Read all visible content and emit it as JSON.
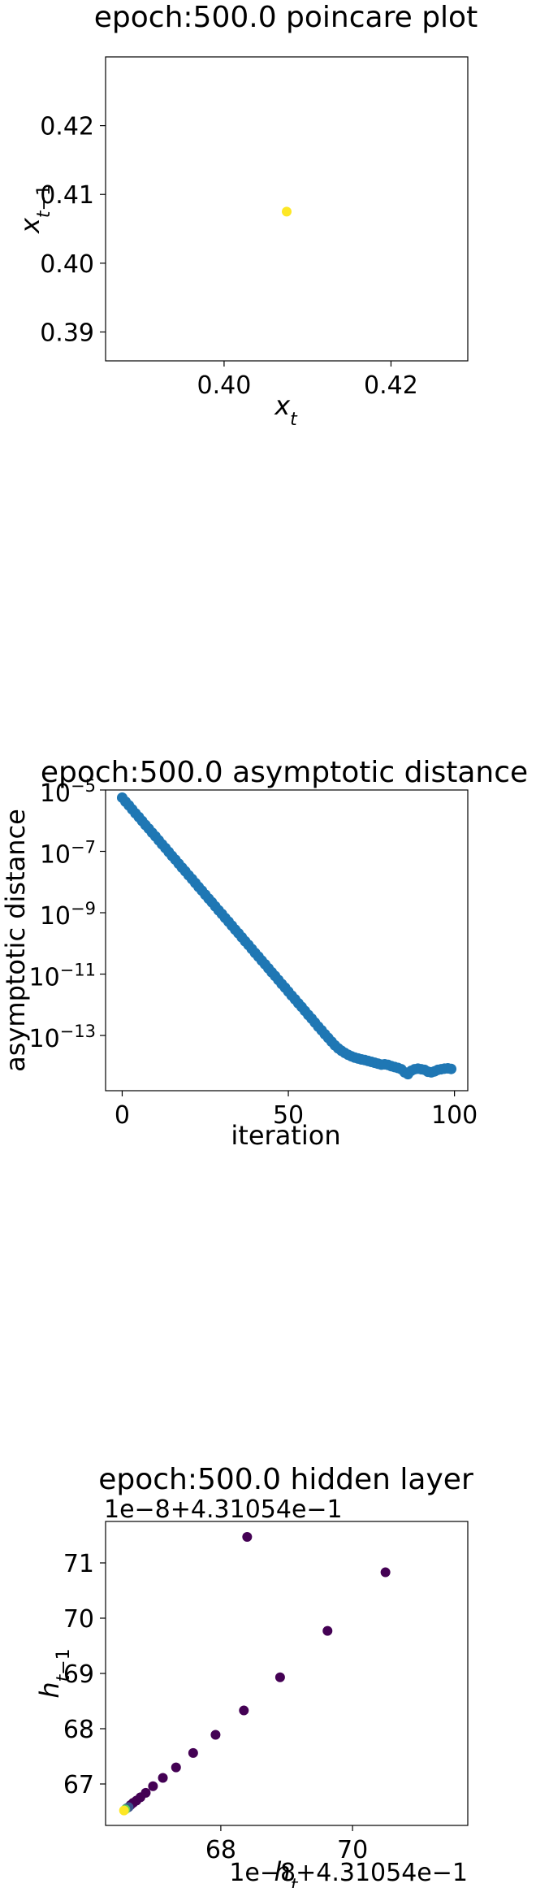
{
  "chart_data": [
    {
      "type": "scatter",
      "title": "epoch:500.0 poincare plot",
      "xlabel": "x_t",
      "ylabel": "x_{t−1}",
      "xlim": [
        0.3858,
        0.4292
      ],
      "ylim": [
        0.3858,
        0.43
      ],
      "xticks": [
        0.4,
        0.42
      ],
      "xtick_labels": [
        "0.40",
        "0.42"
      ],
      "yticks": [
        0.39,
        0.4,
        0.41,
        0.42
      ],
      "ytick_labels": [
        "0.39",
        "0.40",
        "0.41",
        "0.42"
      ],
      "grid": false,
      "points": [
        {
          "x": 0.4075,
          "y": 0.4075,
          "color": "#fde725"
        }
      ]
    },
    {
      "type": "scatter",
      "title": "epoch:500.0 asymptotic distance",
      "xlabel": "iteration",
      "ylabel": "asymptotic distance",
      "yscale": "log",
      "xlim": [
        -5,
        104
      ],
      "ylim_log10": [
        -14.8,
        -5.0
      ],
      "xticks": [
        0,
        50,
        100
      ],
      "xtick_labels": [
        "0",
        "50",
        "100"
      ],
      "yticks_log10": [
        -5,
        -7,
        -9,
        -11,
        -13
      ],
      "ytick_labels": [
        "10^-5",
        "10^-7",
        "10^-9",
        "10^-11",
        "10^-13"
      ],
      "grid": false,
      "color": "#1f77b4",
      "points_log10": [
        [
          0,
          -5.25
        ],
        [
          1,
          -5.38
        ],
        [
          2,
          -5.5
        ],
        [
          3,
          -5.63
        ],
        [
          4,
          -5.76
        ],
        [
          5,
          -5.88
        ],
        [
          6,
          -6.01
        ],
        [
          7,
          -6.14
        ],
        [
          8,
          -6.26
        ],
        [
          9,
          -6.39
        ],
        [
          10,
          -6.51
        ],
        [
          11,
          -6.64
        ],
        [
          12,
          -6.77
        ],
        [
          13,
          -6.89
        ],
        [
          14,
          -7.02
        ],
        [
          15,
          -7.15
        ],
        [
          16,
          -7.27
        ],
        [
          17,
          -7.4
        ],
        [
          18,
          -7.53
        ],
        [
          19,
          -7.65
        ],
        [
          20,
          -7.78
        ],
        [
          21,
          -7.9
        ],
        [
          22,
          -8.03
        ],
        [
          23,
          -8.16
        ],
        [
          24,
          -8.28
        ],
        [
          25,
          -8.41
        ],
        [
          26,
          -8.54
        ],
        [
          27,
          -8.66
        ],
        [
          28,
          -8.79
        ],
        [
          29,
          -8.92
        ],
        [
          30,
          -9.04
        ],
        [
          31,
          -9.17
        ],
        [
          32,
          -9.29
        ],
        [
          33,
          -9.42
        ],
        [
          34,
          -9.55
        ],
        [
          35,
          -9.67
        ],
        [
          36,
          -9.8
        ],
        [
          37,
          -9.93
        ],
        [
          38,
          -10.05
        ],
        [
          39,
          -10.18
        ],
        [
          40,
          -10.31
        ],
        [
          41,
          -10.43
        ],
        [
          42,
          -10.56
        ],
        [
          43,
          -10.68
        ],
        [
          44,
          -10.81
        ],
        [
          45,
          -10.94
        ],
        [
          46,
          -11.06
        ],
        [
          47,
          -11.19
        ],
        [
          48,
          -11.32
        ],
        [
          49,
          -11.44
        ],
        [
          50,
          -11.57
        ],
        [
          51,
          -11.7
        ],
        [
          52,
          -11.82
        ],
        [
          53,
          -11.95
        ],
        [
          54,
          -12.07
        ],
        [
          55,
          -12.2
        ],
        [
          56,
          -12.33
        ],
        [
          57,
          -12.45
        ],
        [
          58,
          -12.58
        ],
        [
          59,
          -12.71
        ],
        [
          60,
          -12.83
        ],
        [
          61,
          -12.96
        ],
        [
          62,
          -13.08
        ],
        [
          63,
          -13.2
        ],
        [
          64,
          -13.32
        ],
        [
          65,
          -13.42
        ],
        [
          66,
          -13.5
        ],
        [
          67,
          -13.57
        ],
        [
          68,
          -13.63
        ],
        [
          69,
          -13.68
        ],
        [
          70,
          -13.72
        ],
        [
          71,
          -13.75
        ],
        [
          72,
          -13.78
        ],
        [
          73,
          -13.8
        ],
        [
          74,
          -13.83
        ],
        [
          75,
          -13.86
        ],
        [
          76,
          -13.89
        ],
        [
          77,
          -13.92
        ],
        [
          78,
          -13.95
        ],
        [
          79,
          -13.94
        ],
        [
          80,
          -13.96
        ],
        [
          81,
          -14.0
        ],
        [
          82,
          -14.03
        ],
        [
          83,
          -14.06
        ],
        [
          84,
          -14.1
        ],
        [
          85,
          -14.2
        ],
        [
          86,
          -14.26
        ],
        [
          87,
          -14.15
        ],
        [
          88,
          -14.1
        ],
        [
          89,
          -14.08
        ],
        [
          90,
          -14.1
        ],
        [
          91,
          -14.12
        ],
        [
          92,
          -14.18
        ],
        [
          93,
          -14.2
        ],
        [
          94,
          -14.17
        ],
        [
          95,
          -14.12
        ],
        [
          96,
          -14.1
        ],
        [
          97,
          -14.08
        ],
        [
          98,
          -14.07
        ],
        [
          99,
          -14.09
        ]
      ]
    },
    {
      "type": "scatter",
      "title": "epoch:500.0 hidden layer",
      "xlabel": "h_t",
      "ylabel": "h_{t−1}",
      "x_offset_text": "1e−8+4.31054e−1",
      "y_offset_text": "1e−8+4.31054e−1",
      "xlim": [
        66.25,
        71.75
      ],
      "ylim": [
        66.25,
        71.75
      ],
      "xticks": [
        68,
        70
      ],
      "xtick_labels": [
        "68",
        "70"
      ],
      "yticks": [
        67,
        68,
        69,
        70,
        71
      ],
      "ytick_labels": [
        "67",
        "68",
        "69",
        "70",
        "71"
      ],
      "grid": false,
      "points": [
        {
          "x": 66.53,
          "y": 66.52,
          "color": "#fde725"
        },
        {
          "x": 66.55,
          "y": 66.54,
          "color": "#5ec962"
        },
        {
          "x": 66.57,
          "y": 66.56,
          "color": "#3b528b"
        },
        {
          "x": 66.6,
          "y": 66.58,
          "color": "#3b528b"
        },
        {
          "x": 66.63,
          "y": 66.62,
          "color": "#440154"
        },
        {
          "x": 66.67,
          "y": 66.66,
          "color": "#440154"
        },
        {
          "x": 66.72,
          "y": 66.7,
          "color": "#440154"
        },
        {
          "x": 66.78,
          "y": 66.76,
          "color": "#440154"
        },
        {
          "x": 66.86,
          "y": 66.84,
          "color": "#440154"
        },
        {
          "x": 66.97,
          "y": 66.96,
          "color": "#440154"
        },
        {
          "x": 67.12,
          "y": 67.11,
          "color": "#440154"
        },
        {
          "x": 67.32,
          "y": 67.3,
          "color": "#440154"
        },
        {
          "x": 67.58,
          "y": 67.56,
          "color": "#440154"
        },
        {
          "x": 67.92,
          "y": 67.89,
          "color": "#440154"
        },
        {
          "x": 68.35,
          "y": 68.33,
          "color": "#440154"
        },
        {
          "x": 68.9,
          "y": 68.93,
          "color": "#440154"
        },
        {
          "x": 69.62,
          "y": 69.77,
          "color": "#440154"
        },
        {
          "x": 70.5,
          "y": 70.83,
          "color": "#440154"
        },
        {
          "x": 68.4,
          "y": 71.47,
          "color": "#440154"
        }
      ]
    }
  ]
}
